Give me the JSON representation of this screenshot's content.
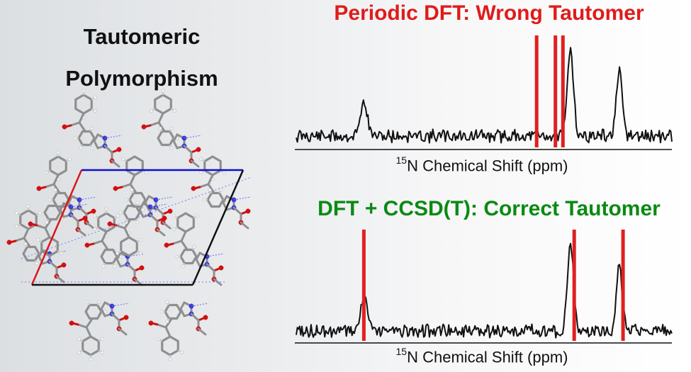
{
  "left": {
    "title_line1": "Tautomeric",
    "title_line2": "Polymorphism"
  },
  "colors": {
    "wrong": "#e01b1b",
    "correct": "#0a8a14",
    "cell_a": "#d81818",
    "cell_b": "#1010c8",
    "cell_c": "#111111",
    "marker": "#e02020"
  },
  "chart_data": [
    {
      "type": "line",
      "title": "Periodic DFT: Wrong Tautomer",
      "xlabel_isotope": "15",
      "xlabel": "N Chemical Shift (ppm)",
      "peaks": [
        0.18,
        0.73,
        0.86
      ],
      "markers": [
        0.64,
        0.69,
        0.71
      ],
      "grid": false
    },
    {
      "type": "line",
      "title": "DFT + CCSD(T): Correct Tautomer",
      "xlabel_isotope": "15",
      "xlabel": "N Chemical Shift (ppm)",
      "peaks": [
        0.18,
        0.73,
        0.86
      ],
      "markers": [
        0.18,
        0.74,
        0.87
      ],
      "grid": false
    }
  ]
}
